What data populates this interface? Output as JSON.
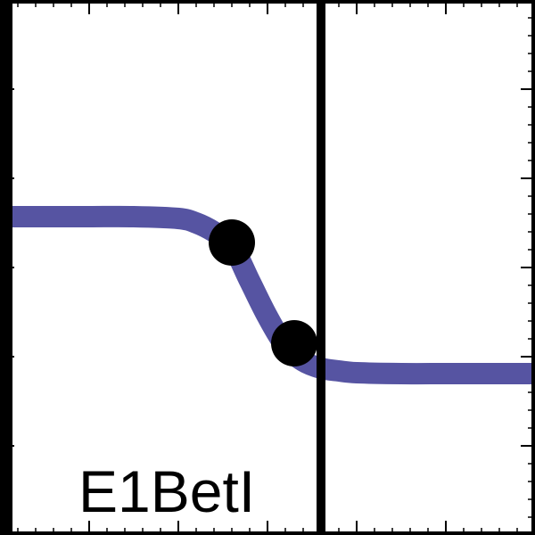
{
  "chart_data": {
    "type": "line",
    "label": "E1BetI",
    "colors": {
      "curve": "#5654a2",
      "points": "#000000",
      "frame": "#000000",
      "vertical_line": "#000000"
    },
    "xlim": [
      -3,
      3
    ],
    "ylim": [
      -3,
      3
    ],
    "vertical_line_x": 0.6,
    "curve": {
      "x": [
        -3.0,
        -2.5,
        -2.0,
        -1.5,
        -1.0,
        -0.8,
        -0.6,
        -0.4,
        -0.2,
        0.0,
        0.2,
        0.4,
        0.6,
        0.8,
        1.0,
        1.5,
        2.0,
        2.5,
        3.0
      ],
      "y": [
        0.57,
        0.57,
        0.57,
        0.57,
        0.55,
        0.5,
        0.4,
        0.25,
        -0.15,
        -0.55,
        -0.88,
        -1.05,
        -1.13,
        -1.16,
        -1.18,
        -1.19,
        -1.19,
        -1.19,
        -1.19
      ]
    },
    "points": {
      "x": [
        -0.4,
        0.3
      ],
      "y": [
        0.28,
        -0.85
      ]
    },
    "ticks": {
      "major": [
        -2,
        -1,
        0,
        1,
        2
      ],
      "minor_step": 0.2
    }
  }
}
